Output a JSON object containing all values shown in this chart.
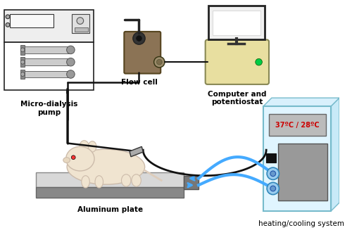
{
  "bg_color": "#ffffff",
  "fig_width": 5.0,
  "fig_height": 3.34,
  "dpi": 100,
  "labels": {
    "micro_dialysis": "Micro-dialysis\npump",
    "flow_cell": "Flow cell",
    "computer": "Computer and\npotentiostat",
    "aluminum": "Aluminum plate",
    "heating": "heating/cooling system",
    "temp": "37ºC / 28ºC"
  },
  "colors": {
    "pump_border": "#222222",
    "pump_fill": "#ffffff",
    "pump_inner_fill": "#f5f5f5",
    "pump_top_fill": "#eeeeee",
    "syringe_fill": "#cccccc",
    "syringe_border": "#666666",
    "computer_fill": "#e8dfa0",
    "computer_border": "#888855",
    "monitor_fill": "#f0f0f0",
    "monitor_border": "#222222",
    "monitor_screen": "#ffffff",
    "heater_fill": "#e0f5ff",
    "heater_border": "#77bbcc",
    "heater_side": "#c8eaf8",
    "heater_top_face": "#d8f0fc",
    "display_fill": "#bbbbbb",
    "display_screen": "#999999",
    "temp_color": "#cc0000",
    "plate_top": "#d8d8d8",
    "plate_side_dark": "#888888",
    "tube_blue": "#44aaff",
    "tube_black": "#111111",
    "flow_cell_body": "#8b7355",
    "flow_cell_border": "#55441f",
    "green_dot": "#00cc44",
    "label_color": "#000000",
    "label_fontsize": 7.5,
    "bold": true
  }
}
